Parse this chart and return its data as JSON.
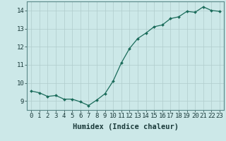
{
  "x": [
    0,
    1,
    2,
    3,
    4,
    5,
    6,
    7,
    8,
    9,
    10,
    11,
    12,
    13,
    14,
    15,
    16,
    17,
    18,
    19,
    20,
    21,
    22,
    23
  ],
  "y": [
    9.55,
    9.45,
    9.25,
    9.3,
    9.1,
    9.1,
    8.95,
    8.75,
    9.05,
    9.4,
    10.1,
    11.1,
    11.9,
    12.45,
    12.75,
    13.1,
    13.2,
    13.55,
    13.65,
    13.95,
    13.9,
    14.2,
    14.0,
    13.95
  ],
  "line_color": "#1a6b5a",
  "marker": "D",
  "marker_size": 2.0,
  "bg_color": "#cce8e8",
  "grid_color": "#b0cccc",
  "xlabel": "Humidex (Indice chaleur)",
  "xlim": [
    -0.5,
    23.5
  ],
  "ylim": [
    8.5,
    14.5
  ],
  "yticks": [
    9,
    10,
    11,
    12,
    13,
    14
  ],
  "xticks": [
    0,
    1,
    2,
    3,
    4,
    5,
    6,
    7,
    8,
    9,
    10,
    11,
    12,
    13,
    14,
    15,
    16,
    17,
    18,
    19,
    20,
    21,
    22,
    23
  ],
  "xlabel_fontsize": 7.5,
  "tick_fontsize": 6.5
}
